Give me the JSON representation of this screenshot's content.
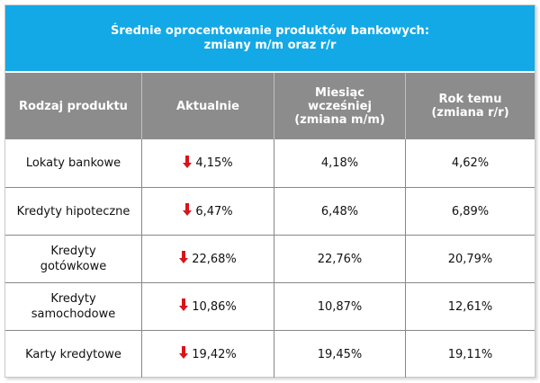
{
  "title": {
    "line1": "Średnie oprocentowanie produktów bankowych:",
    "line2": "zmiany m/m oraz r/r"
  },
  "headers": {
    "col1": "Rodzaj produktu",
    "col2": "Aktualnie",
    "col3_line1": "Miesiąc",
    "col3_line2": "wcześniej",
    "col3_line3": "(zmiana m/m)",
    "col4_line1": "Rok temu",
    "col4_line2": "(zmiana r/r)"
  },
  "rows": [
    {
      "product_lines": [
        "Lokaty bankowe"
      ],
      "current": "4,15%",
      "month_ago": "4,18%",
      "year_ago": "4,62%",
      "trend_icon": "arrow-down-icon"
    },
    {
      "product_lines": [
        "Kredyty hipoteczne"
      ],
      "current": "6,47%",
      "month_ago": "6,48%",
      "year_ago": "6,89%",
      "trend_icon": "arrow-down-icon"
    },
    {
      "product_lines": [
        "Kredyty",
        "gotówkowe"
      ],
      "current": "22,68%",
      "month_ago": "22,76%",
      "year_ago": "20,79%",
      "trend_icon": "arrow-down-icon"
    },
    {
      "product_lines": [
        "Kredyty",
        "samochodowe"
      ],
      "current": "10,86%",
      "month_ago": "10,87%",
      "year_ago": "12,61%",
      "trend_icon": "arrow-down-icon"
    },
    {
      "product_lines": [
        "Karty kredytowe"
      ],
      "current": "19,42%",
      "month_ago": "19,45%",
      "year_ago": "19,11%",
      "trend_icon": "arrow-down-icon"
    }
  ],
  "colors": {
    "title_bg": "#12a9e6",
    "header_bg": "#8c8c8c",
    "arrow": "#d9141c"
  }
}
